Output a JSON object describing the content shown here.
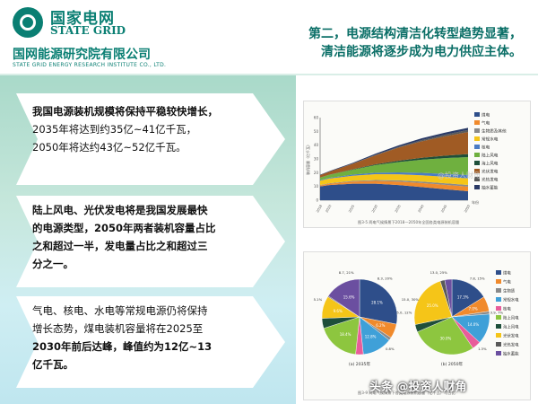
{
  "header": {
    "brand_cn": "国家电网",
    "brand_en": "STATE GRID",
    "org_cn": "国网能源研究院有限公司",
    "org_en": "STATE GRID ENERGY RESEARCH INSTITUTE CO., LTD.",
    "title_line1": "第二，电源结构清洁化转型趋势显著，",
    "title_line2": "清洁能源将逐步成为电力供应主体。"
  },
  "points": [
    {
      "line1": "我国电源装机规模将保持平稳较快增长，",
      "line2": "2035年将达到约35亿~41亿千瓦，",
      "line3": "2050年将达约43亿~52亿千瓦。"
    },
    {
      "line1": "陆上风电、光伏发电将是我国发展最快",
      "line2": "的电源类型，2050年两者装机容量占比",
      "line3": "之和超过一半，发电量占比之和超过三",
      "line4": "分之一。"
    },
    {
      "line1": "气电、核电、水电等常规电源仍将保持",
      "line2": "增长态势，煤电装机容量将在2025至",
      "line3": "2030年前后达峰，峰值约为12亿~13",
      "line4": "亿千瓦。"
    }
  ],
  "figure1": {
    "caption": "图3-5  两电气候情景下2018—2050年全国各类电源装机容量",
    "legend": [
      "煤电",
      "气电",
      "生物质及其他",
      "常规水电",
      "核电",
      "陆上风电",
      "海上风电",
      "光伏发电",
      "光热发电",
      "抽水蓄能"
    ],
    "legend_colors": [
      "#2e4e8a",
      "#f08a2c",
      "#8a8a8a",
      "#f5c518",
      "#4b7cc4",
      "#6fb03f",
      "#1e4f3a",
      "#a05b24",
      "#5a5a5a",
      "#2a3a66"
    ],
    "ylabel": "装机容量（亿千瓦）",
    "x_label_end": "年份"
  },
  "chart_data": [
    {
      "type": "area",
      "title": "",
      "x": [
        2018,
        2020,
        2025,
        2030,
        2035,
        2040,
        2045,
        2050
      ],
      "ylim": [
        0,
        60
      ],
      "series": [
        {
          "name": "煤电",
          "values": [
            10,
            11,
            12,
            12,
            11,
            9.5,
            8,
            6.5
          ]
        },
        {
          "name": "气电",
          "values": [
            0.8,
            1,
            1.5,
            2,
            2.5,
            3,
            3.2,
            3.4
          ]
        },
        {
          "name": "生物质及其他",
          "values": [
            0.2,
            0.3,
            0.5,
            0.7,
            0.9,
            1,
            1.1,
            1.2
          ]
        },
        {
          "name": "常规水电",
          "values": [
            3.2,
            3.4,
            3.8,
            4.2,
            4.4,
            4.6,
            4.7,
            4.8
          ]
        },
        {
          "name": "核电",
          "values": [
            0.4,
            0.5,
            0.8,
            1.1,
            1.4,
            1.8,
            2.1,
            2.4
          ]
        },
        {
          "name": "陆上风电",
          "values": [
            1.8,
            2.2,
            3.5,
            5.5,
            7.5,
            9.5,
            11.5,
            13
          ]
        },
        {
          "name": "海上风电",
          "values": [
            0.1,
            0.1,
            0.3,
            0.6,
            1,
            1.4,
            1.8,
            2.2
          ]
        },
        {
          "name": "光伏发电",
          "values": [
            1.7,
            2.2,
            4,
            6.5,
            9.5,
            12,
            14,
            16
          ]
        },
        {
          "name": "光热发电",
          "values": [
            0,
            0,
            0.1,
            0.3,
            0.6,
            0.9,
            1.2,
            1.5
          ]
        },
        {
          "name": "抽水蓄能",
          "values": [
            0.3,
            0.4,
            0.6,
            0.9,
            1.1,
            1.3,
            1.5,
            1.6
          ]
        }
      ]
    },
    {
      "type": "pie",
      "title": "(a) 2035年",
      "labels": [
        "煤电",
        "气电",
        "生物质及其他",
        "常规水电",
        "核电",
        "陆上风电",
        "海上风电",
        "光伏发电",
        "光热发电",
        "抽水蓄能"
      ],
      "values": [
        28.1,
        6.2,
        1.3,
        12.8,
        3.3,
        18.4,
        4.3,
        9.6,
        0.4,
        15.6
      ],
      "value_labels": [
        "28.1%",
        "6.2%",
        "1.3%",
        "12.8%",
        "3.3%",
        "18.4%",
        "4.3%",
        "9.6%",
        "0.4%",
        "15.6%"
      ],
      "extra_labels": [
        "5.1%",
        "8.7, 21%",
        "8.3, 20%",
        "5.0, 12%",
        "0.8%"
      ]
    },
    {
      "type": "pie",
      "title": "(b) 2050年",
      "labels": [
        "煤电",
        "气电",
        "生物质及其他",
        "常规水电",
        "核电",
        "陆上风电",
        "海上风电",
        "光伏发电",
        "光热发电",
        "抽水蓄能"
      ],
      "values": [
        17.3,
        7.0,
        1.3,
        14.0,
        4.0,
        30.0,
        3.5,
        25.0,
        2.1,
        3.3
      ],
      "value_labels": [
        "17.3%",
        "7.0%",
        "1.3%",
        "14.0%",
        "4.0%",
        "30.0%",
        "3.5%",
        "25.0%",
        "2.1%",
        "3.3%"
      ],
      "extra_labels": [
        "15.0, 30%",
        "13.0, 25%",
        "7.8, 15%",
        "3.9, 7%",
        "1.3%"
      ]
    }
  ],
  "figure2": {
    "caption": "图3-9  两电气候情景下各类电源装机容量（亿千瓦）与占比",
    "sub_a": "(a) 2035年",
    "sub_b": "(b) 2050年",
    "legend": [
      "煤电",
      "气电",
      "生物质",
      "常规水电",
      "核电",
      "陆上风电",
      "海上风电",
      "光伏发电",
      "光热发电",
      "抽水蓄能"
    ]
  },
  "watermark": "头条 @投资人财角",
  "watermark_faint": "@投资人财角"
}
